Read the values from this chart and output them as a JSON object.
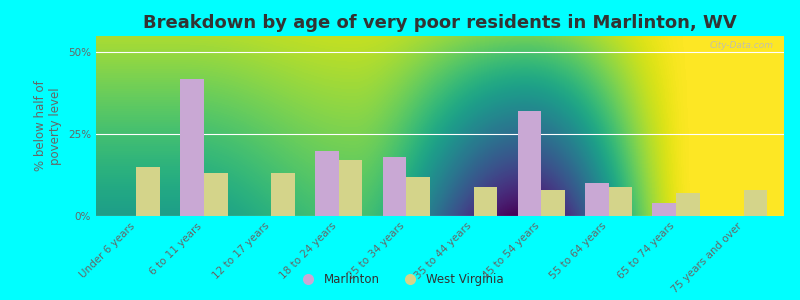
{
  "title": "Breakdown by age of very poor residents in Marlinton, WV",
  "ylabel": "% below half of\npoverty level",
  "categories": [
    "Under 6 years",
    "6 to 11 years",
    "12 to 17 years",
    "18 to 24 years",
    "25 to 34 years",
    "35 to 44 years",
    "45 to 54 years",
    "55 to 64 years",
    "65 to 74 years",
    "75 years and over"
  ],
  "marlinton_values": [
    0,
    42,
    0,
    20,
    18,
    0,
    32,
    10,
    4,
    0
  ],
  "wv_values": [
    15,
    13,
    13,
    17,
    12,
    9,
    8,
    9,
    7,
    8
  ],
  "marlinton_color": "#c9a8d4",
  "wv_color": "#d4d48a",
  "background_color": "#00ffff",
  "plot_bg_top": "#f5f8ee",
  "plot_bg_bottom": "#e0e8b0",
  "ylim": [
    0,
    55
  ],
  "yticks": [
    0,
    25,
    50
  ],
  "ytick_labels": [
    "0%",
    "25%",
    "50%"
  ],
  "bar_width": 0.35,
  "title_fontsize": 13,
  "axis_label_fontsize": 8.5,
  "tick_fontsize": 7.5,
  "legend_labels": [
    "Marlinton",
    "West Virginia"
  ],
  "watermark": "City-Data.com"
}
